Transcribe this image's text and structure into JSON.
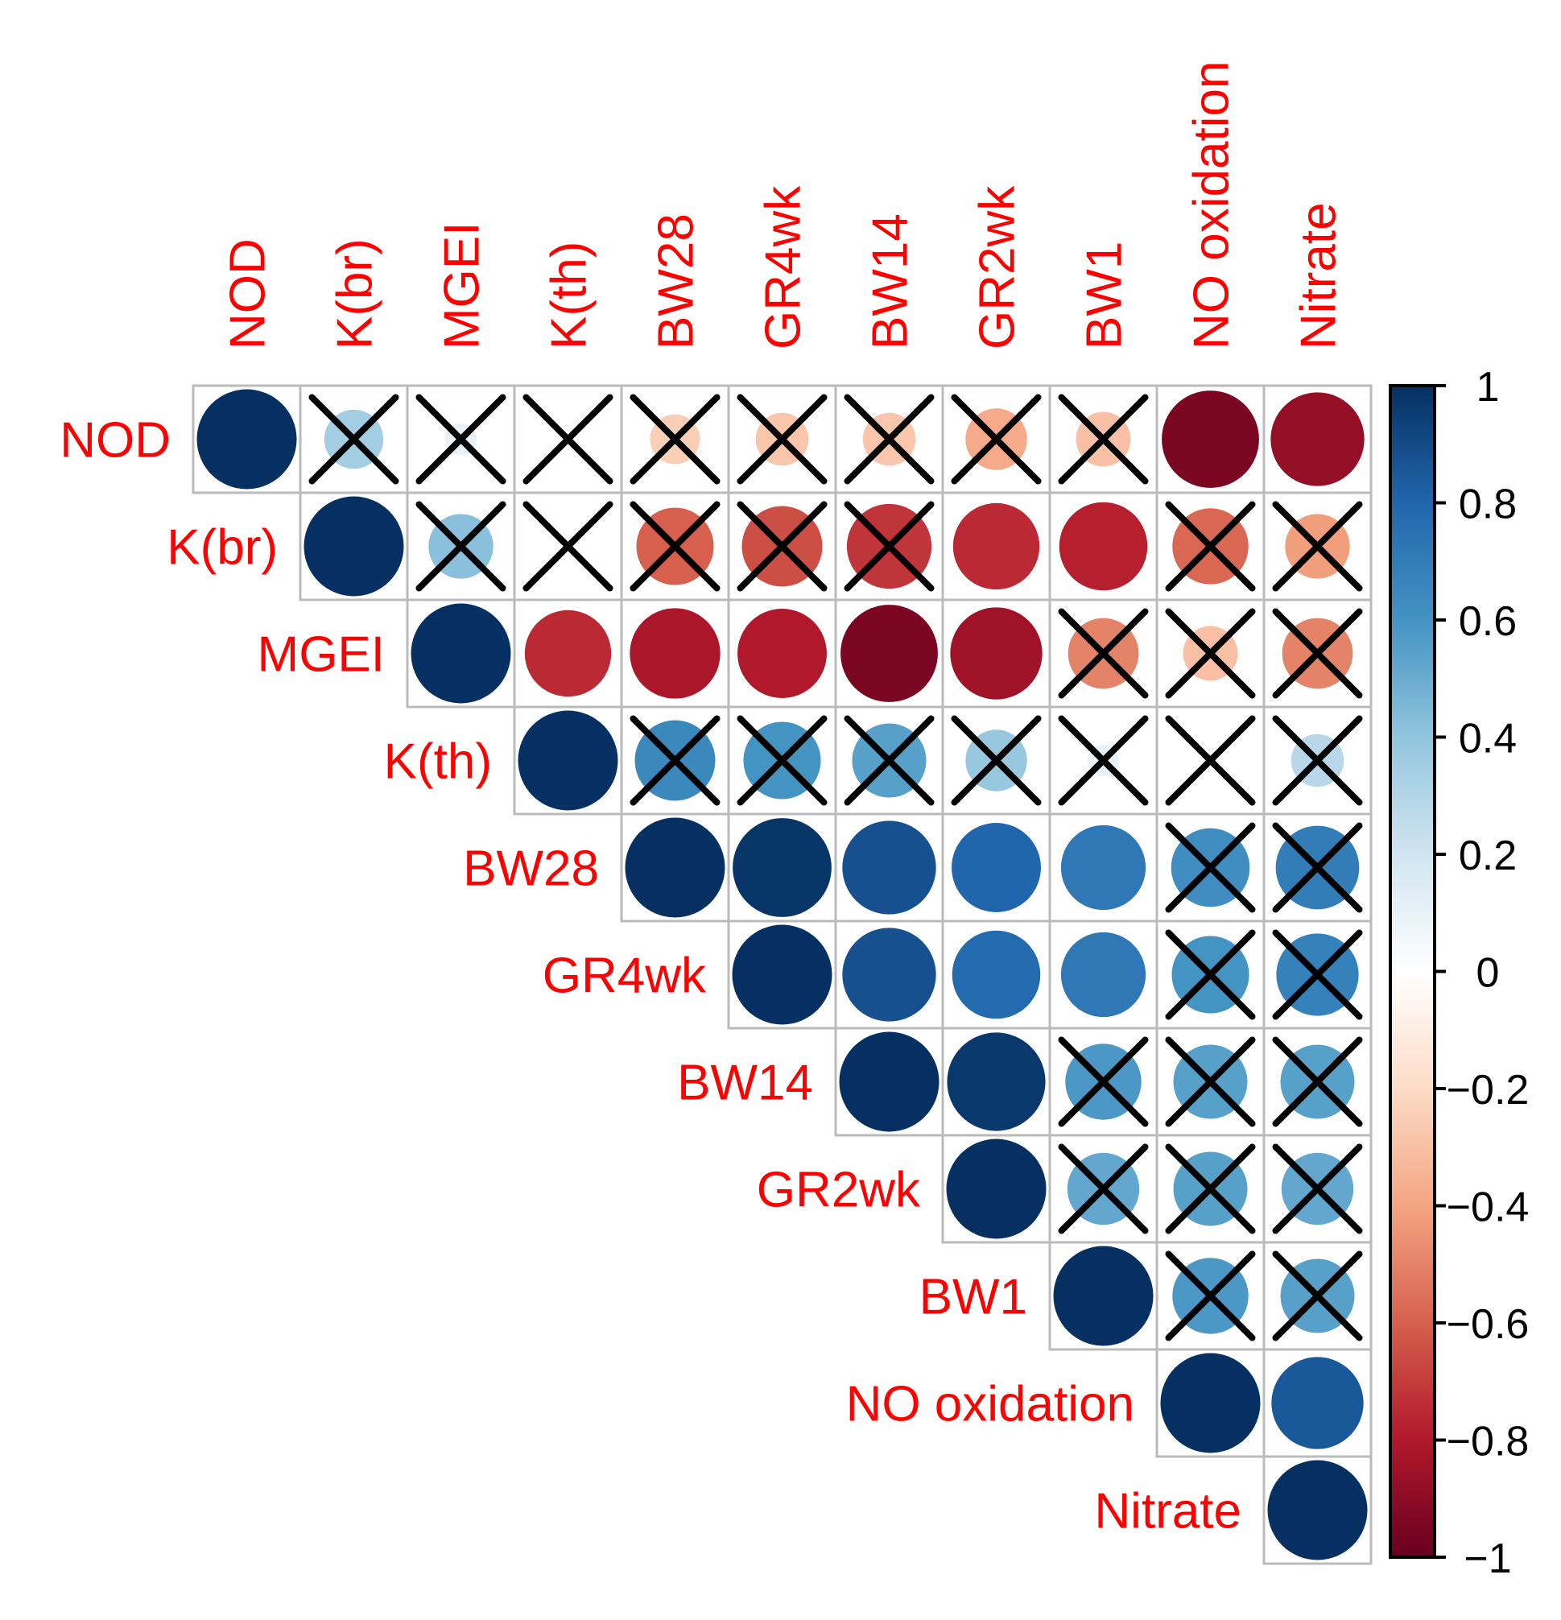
{
  "chart_data": {
    "type": "heatmap",
    "glyph": "circle",
    "layout": "upper-triangle",
    "variables": [
      "NOD",
      "K(br)",
      "MGEI",
      "K(th)",
      "BW28",
      "GR4wk",
      "BW14",
      "GR2wk",
      "BW1",
      "NO oxidation",
      "Nitrate"
    ],
    "matrix": [
      [
        1,
        0.35,
        0.1,
        0.0,
        -0.25,
        -0.28,
        -0.28,
        -0.38,
        -0.3,
        -0.95,
        -0.88
      ],
      [
        null,
        1,
        0.42,
        0.02,
        -0.6,
        -0.65,
        -0.72,
        -0.75,
        -0.78,
        -0.58,
        -0.42
      ],
      [
        null,
        null,
        1,
        -0.75,
        -0.82,
        -0.8,
        -0.95,
        -0.85,
        -0.5,
        -0.3,
        -0.5
      ],
      [
        null,
        null,
        null,
        1,
        0.65,
        0.6,
        0.55,
        0.38,
        0.1,
        0.02,
        0.28
      ],
      [
        null,
        null,
        null,
        null,
        1,
        0.98,
        0.88,
        0.8,
        0.72,
        0.62,
        0.7
      ],
      [
        null,
        null,
        null,
        null,
        null,
        1,
        0.88,
        0.78,
        0.72,
        0.6,
        0.68
      ],
      [
        null,
        null,
        null,
        null,
        null,
        null,
        1,
        0.97,
        0.58,
        0.55,
        0.55
      ],
      [
        null,
        null,
        null,
        null,
        null,
        null,
        null,
        1,
        0.52,
        0.55,
        0.52
      ],
      [
        null,
        null,
        null,
        null,
        null,
        null,
        null,
        null,
        1,
        0.58,
        0.55
      ],
      [
        null,
        null,
        null,
        null,
        null,
        null,
        null,
        null,
        null,
        1,
        0.85
      ],
      [
        null,
        null,
        null,
        null,
        null,
        null,
        null,
        null,
        null,
        null,
        1
      ]
    ],
    "insignificant": [
      [
        0,
        1
      ],
      [
        0,
        2
      ],
      [
        0,
        3
      ],
      [
        0,
        4
      ],
      [
        0,
        5
      ],
      [
        0,
        6
      ],
      [
        0,
        7
      ],
      [
        0,
        8
      ],
      [
        1,
        2
      ],
      [
        1,
        3
      ],
      [
        1,
        4
      ],
      [
        1,
        5
      ],
      [
        1,
        6
      ],
      [
        1,
        9
      ],
      [
        1,
        10
      ],
      [
        2,
        8
      ],
      [
        2,
        9
      ],
      [
        2,
        10
      ],
      [
        3,
        4
      ],
      [
        3,
        5
      ],
      [
        3,
        6
      ],
      [
        3,
        7
      ],
      [
        3,
        8
      ],
      [
        3,
        9
      ],
      [
        3,
        10
      ],
      [
        4,
        9
      ],
      [
        4,
        10
      ],
      [
        5,
        9
      ],
      [
        5,
        10
      ],
      [
        6,
        8
      ],
      [
        6,
        9
      ],
      [
        6,
        10
      ],
      [
        7,
        8
      ],
      [
        7,
        9
      ],
      [
        7,
        10
      ],
      [
        8,
        9
      ],
      [
        8,
        10
      ]
    ],
    "colorbar": {
      "range": [
        -1,
        1
      ],
      "ticks": [
        "1",
        "0.8",
        "0.6",
        "0.4",
        "0.2",
        "0",
        "−0.2",
        "−0.4",
        "−0.6",
        "−0.8",
        "−1"
      ],
      "colors": [
        "#67001f",
        "#b2182b",
        "#d6604d",
        "#f4a582",
        "#fddbc7",
        "#ffffff",
        "#d1e5f0",
        "#92c5de",
        "#4393c3",
        "#2166ac",
        "#053061"
      ]
    },
    "label_color": "#ff0000",
    "grid_color": "#bbbbbb",
    "cross_color": "#000000"
  }
}
